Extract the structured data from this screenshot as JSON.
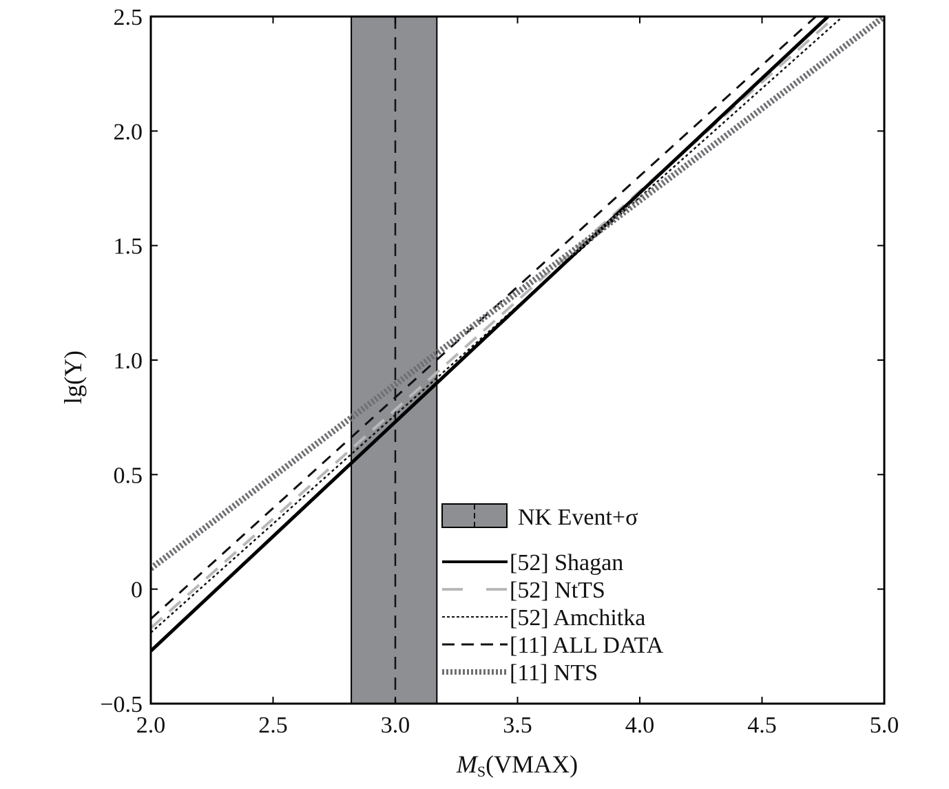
{
  "chart_data": {
    "type": "line",
    "title": "",
    "xlabel": {
      "main": "M",
      "sub": "S",
      "rest": "(VMAX)"
    },
    "ylabel": "lg(Y)",
    "xlim": [
      2.0,
      5.0
    ],
    "ylim": [
      -0.5,
      2.5
    ],
    "xticks": [
      "2.0",
      "2.5",
      "3.0",
      "3.5",
      "4.0",
      "4.5",
      "5.0"
    ],
    "yticks": [
      "−0.5",
      "0",
      "0.5",
      "1.0",
      "1.5",
      "2.0",
      "2.5"
    ],
    "grid": false,
    "legend_position": "lower-right",
    "band": {
      "name": "NK Event+σ",
      "center": 3.0,
      "low": 2.82,
      "high": 3.17,
      "color": "#8e8f93"
    },
    "series": [
      {
        "name": "[52] Shagan",
        "style": "solid",
        "color": "#000000",
        "x": [
          2.0,
          4.77
        ],
        "y": [
          -0.27,
          2.5
        ]
      },
      {
        "name": "[52] NtTS",
        "style": "long-dash-light",
        "color": "#b8b8b8",
        "x": [
          2.0,
          4.8
        ],
        "y": [
          -0.17,
          2.5
        ]
      },
      {
        "name": "[52] Amchitka",
        "style": "dotted",
        "color": "#111111",
        "x": [
          2.0,
          4.83
        ],
        "y": [
          -0.19,
          2.5
        ]
      },
      {
        "name": "[11] ALL DATA",
        "style": "dashed",
        "color": "#111111",
        "x": [
          2.0,
          4.72
        ],
        "y": [
          -0.13,
          2.5
        ]
      },
      {
        "name": "[11] NTS",
        "style": "thick-dotted",
        "color": "#6f6f73",
        "x": [
          2.0,
          5.0
        ],
        "y": [
          0.09,
          2.5
        ]
      }
    ]
  }
}
